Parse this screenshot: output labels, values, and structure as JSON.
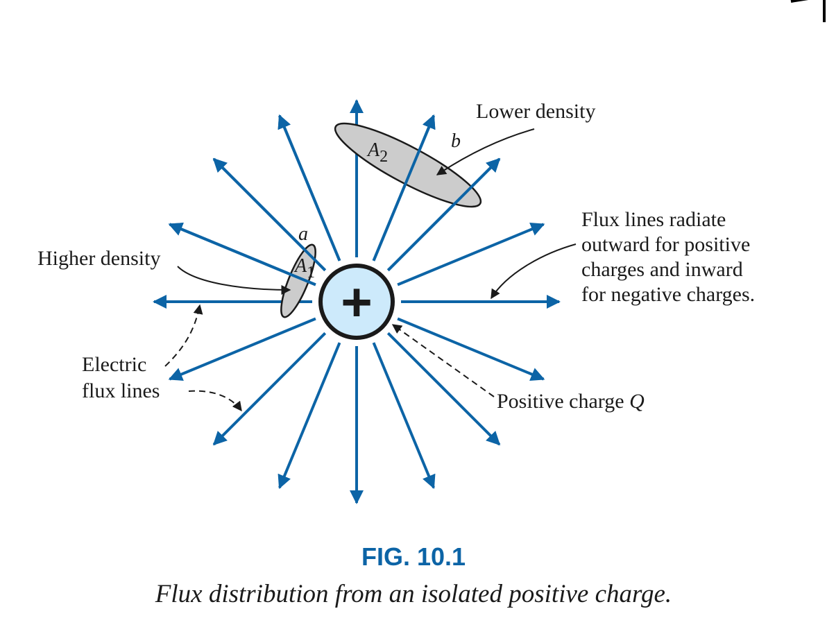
{
  "labels": {
    "lower_density": "Lower density",
    "higher_density": "Higher density",
    "point_a": "a",
    "point_b": "b",
    "area_a1": "A",
    "area_a1_sub": "1",
    "area_a2": "A",
    "area_a2_sub": "2",
    "flux_radiate": [
      "Flux lines radiate",
      "outward for positive",
      "charges and inward",
      "for negative charges."
    ],
    "electric_flux": [
      "Electric",
      "flux lines"
    ],
    "positive_charge": "Positive charge ",
    "positive_charge_symbol": "Q",
    "charge_sign": "+"
  },
  "caption": {
    "title": "FIG. 10.1",
    "text": "Flux distribution from an isolated positive charge."
  },
  "colors": {
    "flux_line": "#0c64a6",
    "charge_fill": "#cdeafb",
    "area_fill": "#cccccc",
    "caption_title": "#0c64a6",
    "text": "#1a1a1a"
  },
  "flux_line_count": 16
}
